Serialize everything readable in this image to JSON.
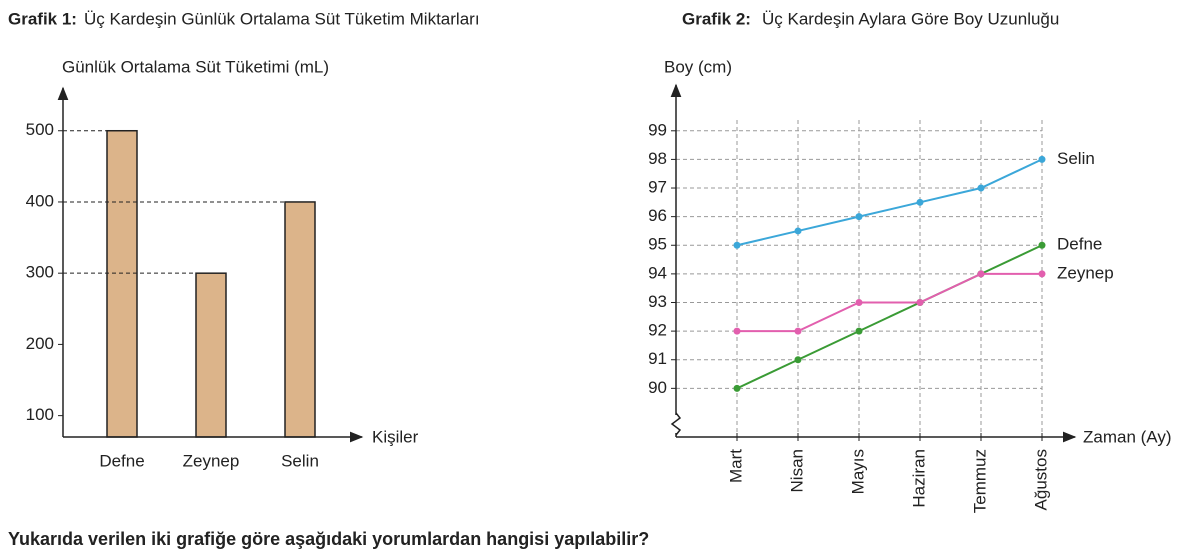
{
  "chart_data": [
    {
      "type": "bar",
      "label": "Grafik 1:",
      "title": "Üç Kardeşin Günlük Ortalama Süt Tüketim  Miktarları",
      "y_label": "Günlük Ortalama Süt Tüketimi (mL)",
      "x_label": "Kişiler",
      "categories": [
        "Defne",
        "Zeynep",
        "Selin"
      ],
      "values": [
        500,
        300,
        400
      ],
      "color": "#dcb48a",
      "ylim": [
        70,
        560
      ],
      "yticks": [
        100,
        200,
        300,
        400,
        500
      ]
    },
    {
      "type": "line",
      "label": "Grafik 2:",
      "title": "Üç Kardeşin Aylara Göre Boy Uzunluğu",
      "y_label": "Boy (cm)",
      "x_label": "Zaman (Ay)",
      "categories": [
        "Mart",
        "Nisan",
        "Mayıs",
        "Haziran",
        "Temmuz",
        "Ağustos"
      ],
      "series": [
        {
          "name": "Selin",
          "color": "#3ba7d9",
          "values": [
            95,
            95.5,
            96,
            96.5,
            97,
            98
          ]
        },
        {
          "name": "Defne",
          "color": "#3a9b35",
          "values": [
            90,
            91,
            92,
            93,
            94,
            95
          ]
        },
        {
          "name": "Zeynep",
          "color": "#e25fae",
          "values": [
            92,
            92,
            93,
            93,
            94,
            94
          ]
        }
      ],
      "ylim": [
        88.3,
        100.6
      ],
      "yticks": [
        90,
        91,
        92,
        93,
        94,
        95,
        96,
        97,
        98,
        99
      ],
      "grid": true
    }
  ],
  "question": "Yukarıda verilen iki grafiğe göre aşağıdaki yorumlardan hangisi yapılabilir?"
}
